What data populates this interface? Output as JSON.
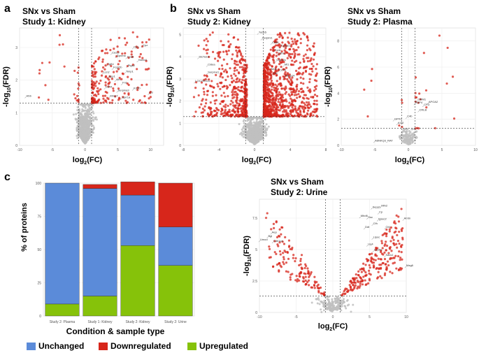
{
  "panel_labels": {
    "a": "a",
    "b": "b",
    "c": "c"
  },
  "colors": {
    "sig": "#d7261b",
    "nonsig": "#c0c0c0",
    "unchanged": "#5b8bd9",
    "downregulated": "#d7261b",
    "upregulated": "#86c20a",
    "panel_bg": "#ffffff",
    "grid": "#ececec",
    "border": "#d5d5d5"
  },
  "axis_label_parts": {
    "y_prefix": "-log",
    "y_sub": "10",
    "y_suffix": "(FDR)",
    "x_prefix": "log",
    "x_sub": "2",
    "x_suffix": "(FC)"
  },
  "chart_data": [
    {
      "id": "a",
      "type": "scatter",
      "title_line1": "SNx vs Sham",
      "title_line2": "Study 1: Kidney",
      "xlim": [
        -10,
        12
      ],
      "ylim": [
        0,
        3.6
      ],
      "xticks": [
        -10,
        -5,
        0,
        5,
        10
      ],
      "yticks": [
        0,
        1,
        2,
        3
      ],
      "fc_lines": [
        -1,
        1
      ],
      "fdr_line": 1.3,
      "seed": 11,
      "n_nonsig": 620,
      "n_sig": 230,
      "spread": 0.0,
      "left_sig": 0.1,
      "labels": [
        {
          "text": "Hbb",
          "x": -9.2,
          "y": 1.45
        },
        {
          "text": "Cp1",
          "x": 7.2,
          "y": 2.95
        },
        {
          "text": "Cpz",
          "x": 8.6,
          "y": 3.0
        },
        {
          "text": "Ces1f",
          "x": 3.9,
          "y": 2.78
        },
        {
          "text": "Cpa5",
          "x": 6.2,
          "y": 2.65
        },
        {
          "text": "Gpnmb",
          "x": 4.6,
          "y": 2.68
        },
        {
          "text": "Havcr1",
          "x": 7.9,
          "y": 2.55
        },
        {
          "text": "Tgfbi",
          "x": 3.2,
          "y": 2.42
        },
        {
          "text": "Fcgr2b",
          "x": 4.1,
          "y": 2.32
        },
        {
          "text": "Ptgs2",
          "x": 6.3,
          "y": 2.38
        },
        {
          "text": "Lcn2",
          "x": 2.6,
          "y": 2.18
        },
        {
          "text": "Timp1",
          "x": 6.0,
          "y": 2.2
        },
        {
          "text": "Spp1",
          "x": 3.4,
          "y": 2.05
        },
        {
          "text": "Vim",
          "x": 4.5,
          "y": 1.95
        },
        {
          "text": "Fn1",
          "x": 5.5,
          "y": 1.85
        },
        {
          "text": "Cd44",
          "x": 2.9,
          "y": 1.72
        },
        {
          "text": "Serpina3",
          "x": 4.8,
          "y": 1.62
        },
        {
          "text": "Krt20",
          "x": 7.2,
          "y": 1.68
        },
        {
          "text": "Mmp7",
          "x": 3.6,
          "y": 1.45
        },
        {
          "text": "Sprr1a",
          "x": 5.4,
          "y": 1.4
        },
        {
          "text": "C3",
          "x": 9.6,
          "y": 1.55
        }
      ]
    },
    {
      "id": "b1",
      "type": "scatter",
      "title_line1": "SNx vs Sham",
      "title_line2": "Study 2: Kidney",
      "xlim": [
        -8,
        8
      ],
      "ylim": [
        0,
        5.3
      ],
      "xticks": [
        -8,
        -4,
        0,
        4,
        8
      ],
      "yticks": [
        0,
        1,
        2,
        3,
        4,
        5
      ],
      "fc_lines": [
        -1,
        1
      ],
      "fdr_line": 1.3,
      "seed": 23,
      "n_nonsig": 700,
      "n_sig": 1500,
      "spread": 0.0,
      "left_sig": 0.32,
      "labels": [
        {
          "text": "Tubb5",
          "x": 0.3,
          "y": 5.0
        },
        {
          "text": "Serpini1",
          "x": 0.7,
          "y": 4.75
        },
        {
          "text": "Cd38",
          "x": 1.8,
          "y": 4.55
        },
        {
          "text": "Cyp2e1",
          "x": 2.8,
          "y": 4.4
        },
        {
          "text": "Fcnb",
          "x": 2.1,
          "y": 4.2
        },
        {
          "text": "Ldha",
          "x": 2.5,
          "y": 4.05
        },
        {
          "text": "Slc7a13",
          "x": -6.4,
          "y": 3.9
        },
        {
          "text": "Cdkn2c",
          "x": 2.3,
          "y": 3.75
        },
        {
          "text": "Cidea",
          "x": -5.4,
          "y": 3.55
        },
        {
          "text": "Mt1",
          "x": 3.2,
          "y": 3.55
        },
        {
          "text": "Nid1",
          "x": 1.7,
          "y": 3.35
        },
        {
          "text": "Cd74",
          "x": 2.6,
          "y": 3.3
        },
        {
          "text": "Serpine1",
          "x": -5.4,
          "y": 3.2
        },
        {
          "text": "Tnc",
          "x": 1.9,
          "y": 3.15
        },
        {
          "text": "Mmp14",
          "x": 3.3,
          "y": 3.05
        },
        {
          "text": "LOC299111",
          "x": -6.8,
          "y": 2.8
        }
      ]
    },
    {
      "id": "b2",
      "type": "scatter",
      "title_line1": "SNx vs Sham",
      "title_line2": "Study 2: Plasma",
      "xlim": [
        -10,
        10
      ],
      "ylim": [
        0,
        9
      ],
      "xticks": [
        -10,
        -5,
        0,
        5,
        10
      ],
      "yticks": [
        0,
        2,
        4,
        6,
        8
      ],
      "fc_lines": [
        -1,
        1
      ],
      "fdr_line": 1.3,
      "seed": 37,
      "n_nonsig": 130,
      "n_sig": 28,
      "spread": 0.0,
      "left_sig": 0.2,
      "labels": [
        {
          "text": "C4b",
          "x": -0.4,
          "y": 2.05
        },
        {
          "text": "GPX3",
          "x": -2.3,
          "y": 1.85
        },
        {
          "text": "A1M",
          "x": -1.8,
          "y": 1.55
        },
        {
          "text": "RBP4",
          "x": 0.8,
          "y": 3.1
        },
        {
          "text": "ORM1",
          "x": 1.2,
          "y": 3.35
        },
        {
          "text": "APOA2",
          "x": 2.8,
          "y": 3.15
        },
        {
          "text": "CFD",
          "x": 2.1,
          "y": 2.95
        },
        {
          "text": "CRLB",
          "x": 1.4,
          "y": 2.55
        },
        {
          "text": "A6NKQ3_RAT",
          "x": -5.2,
          "y": 0.2
        }
      ]
    },
    {
      "id": "c1",
      "type": "bar",
      "stacked": true,
      "categories": [
        "Study 2: Plasma",
        "Study 1: Kidney",
        "Study 2: Kidney",
        "Study 2: Urine"
      ],
      "series": [
        {
          "name": "Upregulated",
          "values": [
            9,
            15,
            53,
            38
          ]
        },
        {
          "name": "Unchanged",
          "values": [
            91,
            81,
            38,
            29
          ]
        },
        {
          "name": "Downregulated",
          "values": [
            0,
            3,
            10,
            33
          ]
        }
      ],
      "ylim": [
        0,
        100
      ],
      "yticks": [
        0,
        25,
        50,
        75,
        100
      ],
      "xlabel": "Condition & sample type",
      "ylabel": "% of proteins",
      "legend": [
        {
          "name": "Unchanged",
          "color": "#5b8bd9"
        },
        {
          "name": "Downregulated",
          "color": "#d7261b"
        },
        {
          "name": "Upregulated",
          "color": "#86c20a"
        }
      ],
      "legend_position": "bottom"
    },
    {
      "id": "c2",
      "type": "scatter",
      "title_line1": "SNx vs Sham",
      "title_line2": "Study 2: Urine",
      "xlim": [
        -10,
        10
      ],
      "ylim": [
        0,
        9
      ],
      "xticks": [
        -10,
        -5,
        0,
        5,
        10
      ],
      "yticks": [
        0,
        2.5,
        5,
        7.5
      ],
      "fc_lines": [
        -1,
        1
      ],
      "fdr_line": 1.3,
      "seed": 53,
      "n_nonsig": 180,
      "n_sig": 360,
      "spread": 1.0,
      "left_sig": 0.4,
      "labels": [
        {
          "text": "Sepp1",
          "x": 5.2,
          "y": 8.2
        },
        {
          "text": "Mfn2",
          "x": 6.4,
          "y": 8.3
        },
        {
          "text": "Cp",
          "x": 6.1,
          "y": 7.8
        },
        {
          "text": "Mbd6",
          "x": 3.6,
          "y": 7.5
        },
        {
          "text": "Ssc",
          "x": 4.6,
          "y": 7.4
        },
        {
          "text": "Igsec2",
          "x": 6.0,
          "y": 7.25
        },
        {
          "text": "Amtn",
          "x": 9.5,
          "y": 7.3
        },
        {
          "text": "Cfh",
          "x": 5.3,
          "y": 6.9
        },
        {
          "text": "Ddt",
          "x": 4.2,
          "y": 6.6
        },
        {
          "text": "Cfd",
          "x": 7.0,
          "y": 6.6
        },
        {
          "text": "Aep",
          "x": -8.5,
          "y": 6.2
        },
        {
          "text": "Bgl",
          "x": -9.0,
          "y": 5.9
        },
        {
          "text": "Umod",
          "x": -10.1,
          "y": 5.6
        },
        {
          "text": "Cdh1ca",
          "x": -8.3,
          "y": 5.5
        },
        {
          "text": "Lipoc",
          "x": 5.3,
          "y": 5.8
        },
        {
          "text": "Uq4",
          "x": 4.6,
          "y": 5.25
        },
        {
          "text": "Usp6u",
          "x": 5.4,
          "y": 4.8
        },
        {
          "text": "Sacs1",
          "x": 7.0,
          "y": 4.4
        },
        {
          "text": "Mag6",
          "x": 9.8,
          "y": 3.55
        }
      ]
    }
  ]
}
